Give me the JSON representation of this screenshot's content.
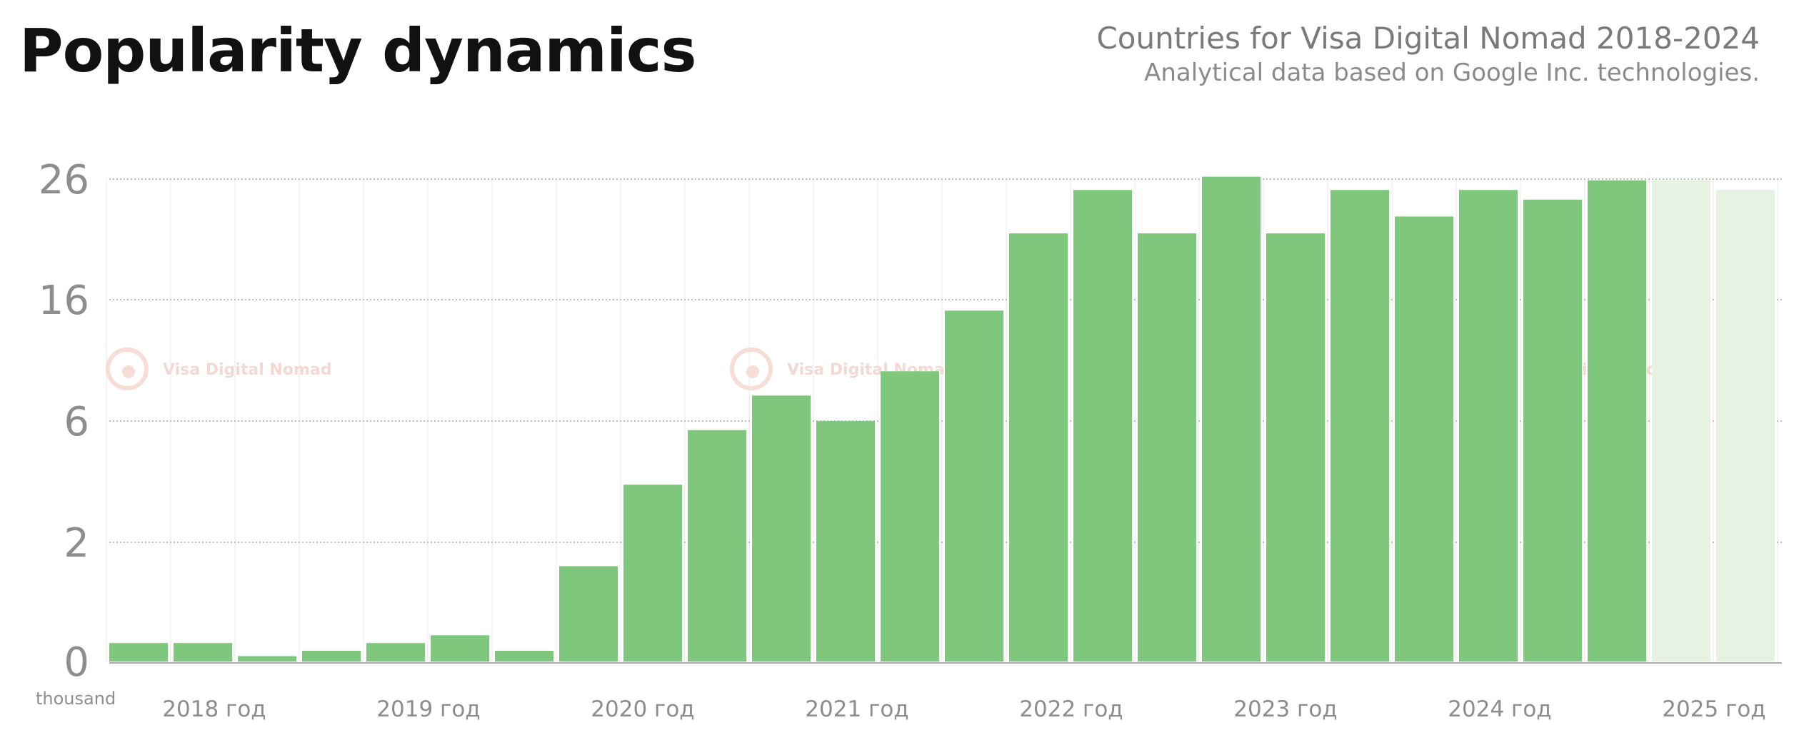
{
  "header": {
    "title": "Popularity dynamics",
    "subtitle_line1": "Countries for Visa Digital Nomad 2018-2024",
    "subtitle_line2": "Analytical data based on Google Inc. technologies."
  },
  "watermark": {
    "text": "Visa Digital Nomad"
  },
  "chart_data": {
    "type": "bar",
    "unit_label": "thousand",
    "y_ticks": [
      0,
      2,
      6,
      16,
      26
    ],
    "y_tick_labels": [
      "0",
      "2",
      "6",
      "16",
      "26"
    ],
    "x_tick_labels": [
      "2018 год",
      "2019 год",
      "2020 год",
      "2021 год",
      "2022 год",
      "2023 год",
      "2024 год",
      "2025 год"
    ],
    "grid": true,
    "legend": "none",
    "values": [
      0.31,
      0.31,
      0.09,
      0.18,
      0.31,
      0.44,
      0.18,
      1.6,
      3.9,
      5.7,
      8.1,
      6.0,
      10.1,
      15.1,
      21.5,
      25.1,
      21.5,
      26.2,
      21.5,
      25.1,
      22.9,
      25.1,
      24.3,
      25.9,
      25.9,
      25.1
    ],
    "forecast_from_index": 24,
    "colors": {
      "bar": "#80c77e",
      "bar_forecast": "#e6f3e3",
      "grid": "#bdbdbd",
      "axis": "#aaaaaa"
    }
  }
}
